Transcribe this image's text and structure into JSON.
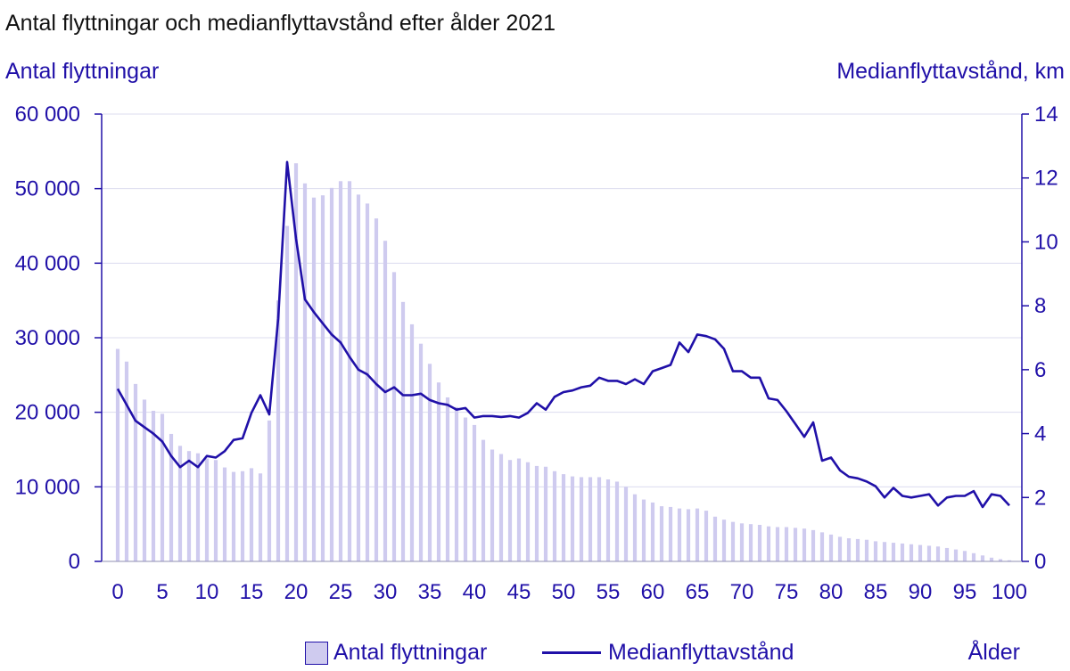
{
  "chart_data": {
    "type": "bar+line",
    "title": "Antal flyttningar och medianflyttavstånd efter ålder 2021",
    "y_left_label": "Antal flyttningar",
    "y_right_label": "Medianflyttavstånd, km",
    "xlabel": "Ålder",
    "x_ticks": [
      "0",
      "5",
      "10",
      "15",
      "20",
      "25",
      "30",
      "35",
      "40",
      "45",
      "50",
      "55",
      "60",
      "65",
      "70",
      "75",
      "80",
      "85",
      "90",
      "95",
      "100"
    ],
    "y_left_ticks": [
      "0",
      "10 000",
      "20 000",
      "30 000",
      "40 000",
      "50 000",
      "60 000"
    ],
    "y_right_ticks": [
      "0",
      "2",
      "4",
      "6",
      "8",
      "10",
      "12",
      "14"
    ],
    "ylim_left": [
      0,
      60000
    ],
    "ylim_right": [
      0,
      14
    ],
    "x": [
      0,
      1,
      2,
      3,
      4,
      5,
      6,
      7,
      8,
      9,
      10,
      11,
      12,
      13,
      14,
      15,
      16,
      17,
      18,
      19,
      20,
      21,
      22,
      23,
      24,
      25,
      26,
      27,
      28,
      29,
      30,
      31,
      32,
      33,
      34,
      35,
      36,
      37,
      38,
      39,
      40,
      41,
      42,
      43,
      44,
      45,
      46,
      47,
      48,
      49,
      50,
      51,
      52,
      53,
      54,
      55,
      56,
      57,
      58,
      59,
      60,
      61,
      62,
      63,
      64,
      65,
      66,
      67,
      68,
      69,
      70,
      71,
      72,
      73,
      74,
      75,
      76,
      77,
      78,
      79,
      80,
      81,
      82,
      83,
      84,
      85,
      86,
      87,
      88,
      89,
      90,
      91,
      92,
      93,
      94,
      95,
      96,
      97,
      98,
      99,
      100
    ],
    "series": [
      {
        "name": "Antal flyttningar",
        "kind": "bar",
        "axis": "left",
        "color": "#cfcbef",
        "values": [
          28500,
          26800,
          23800,
          21700,
          20200,
          19800,
          17100,
          15500,
          14800,
          14500,
          13800,
          13600,
          12600,
          12000,
          12100,
          12500,
          11800,
          18900,
          35000,
          45000,
          53400,
          50700,
          48800,
          49100,
          50100,
          51000,
          51000,
          49200,
          48000,
          46000,
          43000,
          38800,
          34800,
          31800,
          29200,
          26500,
          24000,
          22000,
          20700,
          19300,
          18300,
          16300,
          15000,
          14400,
          13600,
          13800,
          13300,
          12800,
          12700,
          12100,
          11700,
          11400,
          11300,
          11300,
          11300,
          11000,
          10700,
          10000,
          9000,
          8300,
          7900,
          7400,
          7300,
          7100,
          7000,
          7100,
          6800,
          6000,
          5600,
          5300,
          5100,
          5000,
          4900,
          4700,
          4600,
          4600,
          4500,
          4400,
          4200,
          3900,
          3600,
          3300,
          3100,
          3000,
          2900,
          2700,
          2600,
          2500,
          2400,
          2300,
          2200,
          2100,
          2000,
          1800,
          1600,
          1400,
          1100,
          800,
          500,
          300,
          150
        ],
        "show_from_index": 18
      },
      {
        "name": "Medianflyttavstånd",
        "kind": "line",
        "axis": "right",
        "color": "#2010a8",
        "values": [
          5.4,
          4.9,
          4.4,
          4.2,
          4.0,
          3.75,
          3.3,
          2.95,
          3.15,
          2.95,
          3.3,
          3.25,
          3.45,
          3.8,
          3.85,
          4.65,
          5.2,
          4.6,
          7.6,
          12.5,
          10.1,
          8.2,
          7.8,
          7.45,
          7.1,
          6.85,
          6.4,
          6.0,
          5.85,
          5.55,
          5.3,
          5.45,
          5.2,
          5.2,
          5.25,
          5.05,
          4.95,
          4.9,
          4.75,
          4.8,
          4.5,
          4.55,
          4.55,
          4.52,
          4.55,
          4.5,
          4.65,
          4.95,
          4.75,
          5.15,
          5.3,
          5.35,
          5.45,
          5.5,
          5.75,
          5.65,
          5.65,
          5.55,
          5.7,
          5.55,
          5.95,
          6.05,
          6.15,
          6.85,
          6.55,
          7.1,
          7.05,
          6.95,
          6.65,
          5.95,
          5.95,
          5.75,
          5.75,
          5.1,
          5.05,
          4.7,
          4.3,
          3.9,
          4.35,
          3.15,
          3.25,
          2.85,
          2.65,
          2.6,
          2.5,
          2.35,
          2.0,
          2.3,
          2.05,
          2.0,
          2.05,
          2.1,
          1.75,
          2.0,
          2.05,
          2.05,
          2.2,
          1.7,
          2.1,
          2.05,
          1.75
        ]
      }
    ],
    "grid": true,
    "legend": "bottom"
  }
}
